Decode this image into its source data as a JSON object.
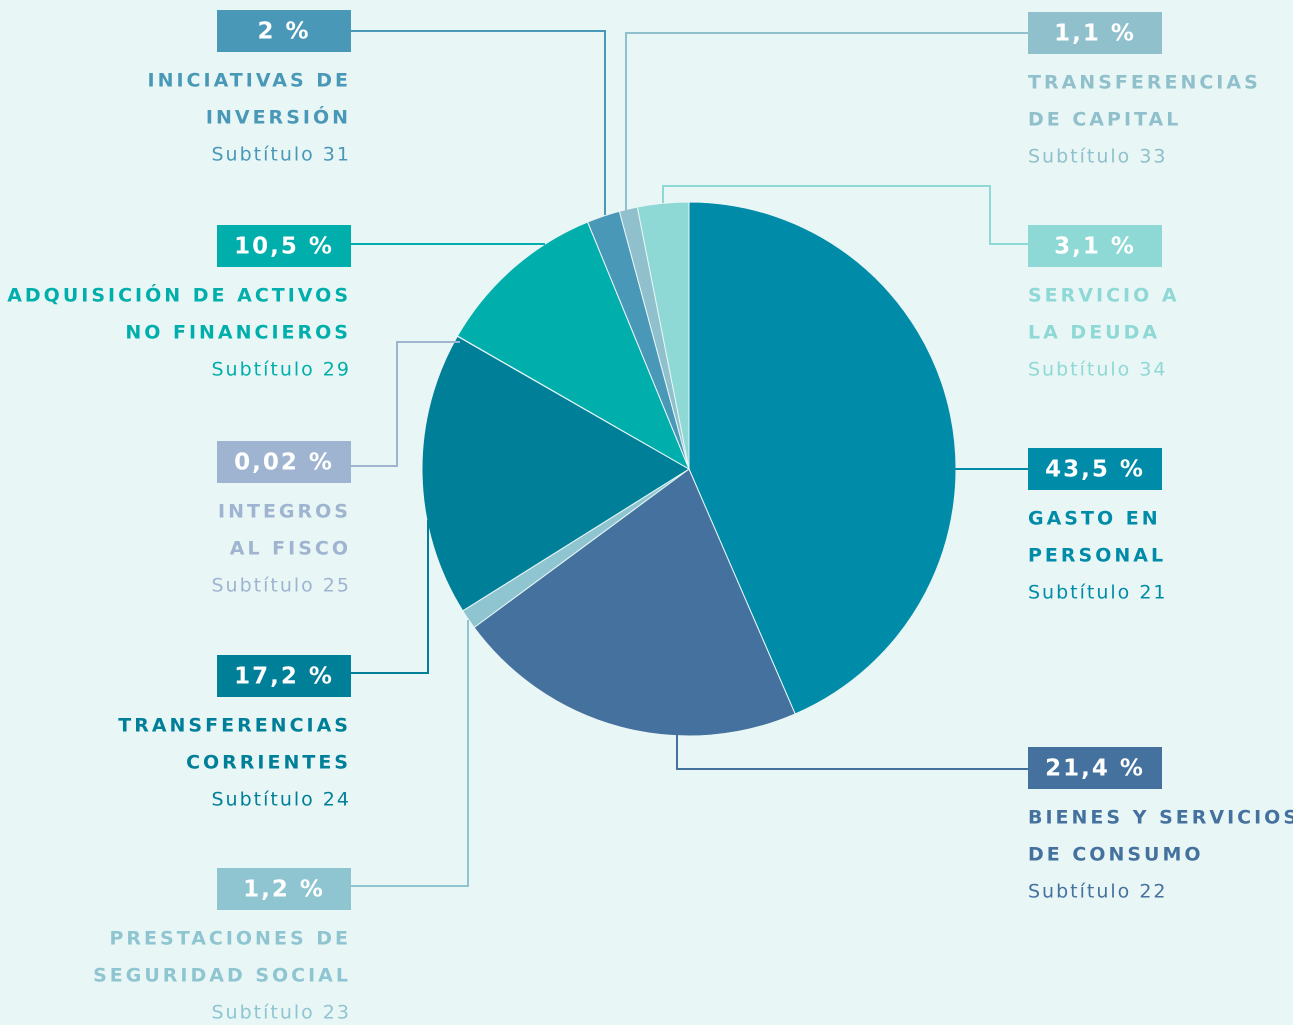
{
  "chart_data": {
    "type": "pie",
    "categories": [
      [
        "GASTO EN",
        "PERSONAL"
      ],
      [
        "BIENES Y SERVICIOS",
        "DE CONSUMO"
      ],
      [
        "PRESTACIONES DE",
        "SEGURIDAD SOCIAL"
      ],
      [
        "TRANSFERENCIAS",
        "CORRIENTES"
      ],
      [
        "INTEGROS",
        "AL FISCO"
      ],
      [
        "ADQUISICIÓN DE ACTIVOS",
        "NO FINANCIEROS"
      ],
      [
        "INICIATIVAS DE",
        "INVERSIÓN"
      ],
      [
        "TRANSFERENCIAS",
        "DE CAPITAL"
      ],
      [
        "SERVICIO A",
        "LA DEUDA"
      ]
    ],
    "subtitles": [
      "Subtítulo 21",
      "Subtítulo 22",
      "Subtítulo 23",
      "Subtítulo 24",
      "Subtítulo 25",
      "Subtítulo 29",
      "Subtítulo 31",
      "Subtítulo 33",
      "Subtítulo 34"
    ],
    "values": [
      43.5,
      21.4,
      1.2,
      17.2,
      0.02,
      10.5,
      2,
      1.1,
      3.1
    ],
    "value_labels": [
      "43,5 %",
      "21,4 %",
      "1,2 %",
      "17,2 %",
      "0,02 %",
      "10,5 %",
      "2 %",
      "1,1 %",
      "3,1 %"
    ],
    "colors": [
      "#008ba8",
      "#45719e",
      "#8ec5d0",
      "#007f99",
      "#9fb4d0",
      "#00aeab",
      "#4a98b8",
      "#90c0cc",
      "#8ed8d5"
    ]
  }
}
